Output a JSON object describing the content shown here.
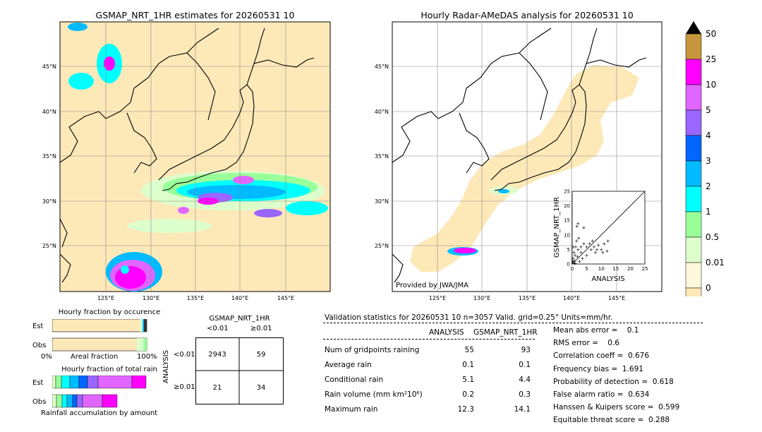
{
  "left_map": {
    "title": "GSMAP_NRT_1HR estimates for 20260531 10",
    "lat_labels": [
      "45°N",
      "40°N",
      "35°N",
      "30°N",
      "25°N"
    ],
    "lon_labels": [
      "125°E",
      "130°E",
      "135°E",
      "140°E",
      "145°E"
    ]
  },
  "right_map": {
    "title": "Hourly Radar-AMeDAS analysis for 20260531 10",
    "lat_labels": [
      "45°N",
      "40°N",
      "35°N",
      "30°N",
      "25°N"
    ],
    "lon_labels": [
      "125°E",
      "130°E",
      "135°E",
      "140°E",
      "145°E"
    ],
    "provided_by": "Provided by JWA/JMA"
  },
  "colorbar": {
    "labels": [
      "50",
      "25",
      "10",
      "5",
      "4",
      "3",
      "2",
      "1",
      "0.5",
      "0.01",
      "0"
    ],
    "colors": [
      "#c8963c",
      "#ff00ff",
      "#e066ff",
      "#9966ff",
      "#0066ff",
      "#00bbff",
      "#00ffff",
      "#99ff99",
      "#ddffcc",
      "#fff8dc",
      "#fde9b8"
    ]
  },
  "scatter": {
    "ylabel": "GSMAP_NRT_1HR",
    "xlabel": "ANALYSIS",
    "ticks": [
      "0",
      "5",
      "10",
      "15",
      "20",
      "25"
    ]
  },
  "fraction_occurrence": {
    "title": "Hourly fraction by occurence",
    "row_labels": [
      "Est",
      "Obs"
    ],
    "axis_left": "0%",
    "axis_mid": "Areal fraction",
    "axis_right": "100%"
  },
  "fraction_total": {
    "title": "Hourly fraction of total rain",
    "row_labels": [
      "Est",
      "Obs"
    ],
    "footer": "Rainfall accumulation by amount"
  },
  "contingency": {
    "title": "GSMAP_NRT_1HR",
    "col_labels": [
      "<0.01",
      "≥0.01"
    ],
    "row_labels": [
      "<0.01",
      "≥0.01"
    ],
    "side_label": "ANALYSIS",
    "cells": [
      [
        "2943",
        "59"
      ],
      [
        "21",
        "34"
      ]
    ]
  },
  "validation": {
    "header": "Validation statistics for 20260531 10  n=3057 Valid. grid=0.25° Units=mm/hr.",
    "col_analysis": "ANALYSIS",
    "col_gsmap": "GSMAP_NRT_1HR",
    "rows": [
      {
        "label": "Num of gridpoints raining",
        "analysis": "55",
        "gsmap": "93"
      },
      {
        "label": "Average rain",
        "analysis": "0.1",
        "gsmap": "0.1"
      },
      {
        "label": "Conditional rain",
        "analysis": "5.1",
        "gsmap": "4.4"
      },
      {
        "label": "Rain volume (mm km²10⁶)",
        "analysis": "0.2",
        "gsmap": "0.3"
      },
      {
        "label": "Maximum rain",
        "analysis": "12.3",
        "gsmap": "14.1"
      }
    ],
    "metrics": [
      "Mean abs error =    0.1",
      "RMS error =    0.6",
      "Correlation coeff =  0.676",
      "Frequency bias =  1.691",
      "Probability of detection =  0.618",
      "False alarm ratio =  0.634",
      "Hanssen & Kuipers score =  0.599",
      "Equitable threat score =  0.288"
    ]
  },
  "chart_data": {
    "type": "scatter",
    "xlabel": "ANALYSIS",
    "ylabel": "GSMAP_NRT_1HR",
    "xlim": [
      0,
      25
    ],
    "ylim": [
      0,
      25
    ],
    "points": [
      [
        0.5,
        0.5
      ],
      [
        0.8,
        1.2
      ],
      [
        1,
        3
      ],
      [
        1.2,
        6
      ],
      [
        1.5,
        8
      ],
      [
        1.6,
        13
      ],
      [
        2,
        5
      ],
      [
        2,
        14
      ],
      [
        2.5,
        1
      ],
      [
        3,
        4
      ],
      [
        3,
        6
      ],
      [
        3.5,
        2
      ],
      [
        4,
        7
      ],
      [
        4,
        12.5
      ],
      [
        5,
        3
      ],
      [
        5,
        6
      ],
      [
        6,
        7
      ],
      [
        6.5,
        5
      ],
      [
        7,
        8
      ],
      [
        7.5,
        6
      ],
      [
        8,
        4
      ],
      [
        8.5,
        5
      ],
      [
        9,
        6.5
      ],
      [
        10,
        5
      ],
      [
        10.5,
        4
      ],
      [
        11,
        7
      ],
      [
        12,
        4.5
      ],
      [
        12.3,
        8
      ],
      [
        0.3,
        2
      ],
      [
        0.6,
        4
      ],
      [
        1,
        0.3
      ],
      [
        0.2,
        0.8
      ],
      [
        1.8,
        2.5
      ],
      [
        2.2,
        9
      ],
      [
        0.4,
        6
      ]
    ]
  }
}
